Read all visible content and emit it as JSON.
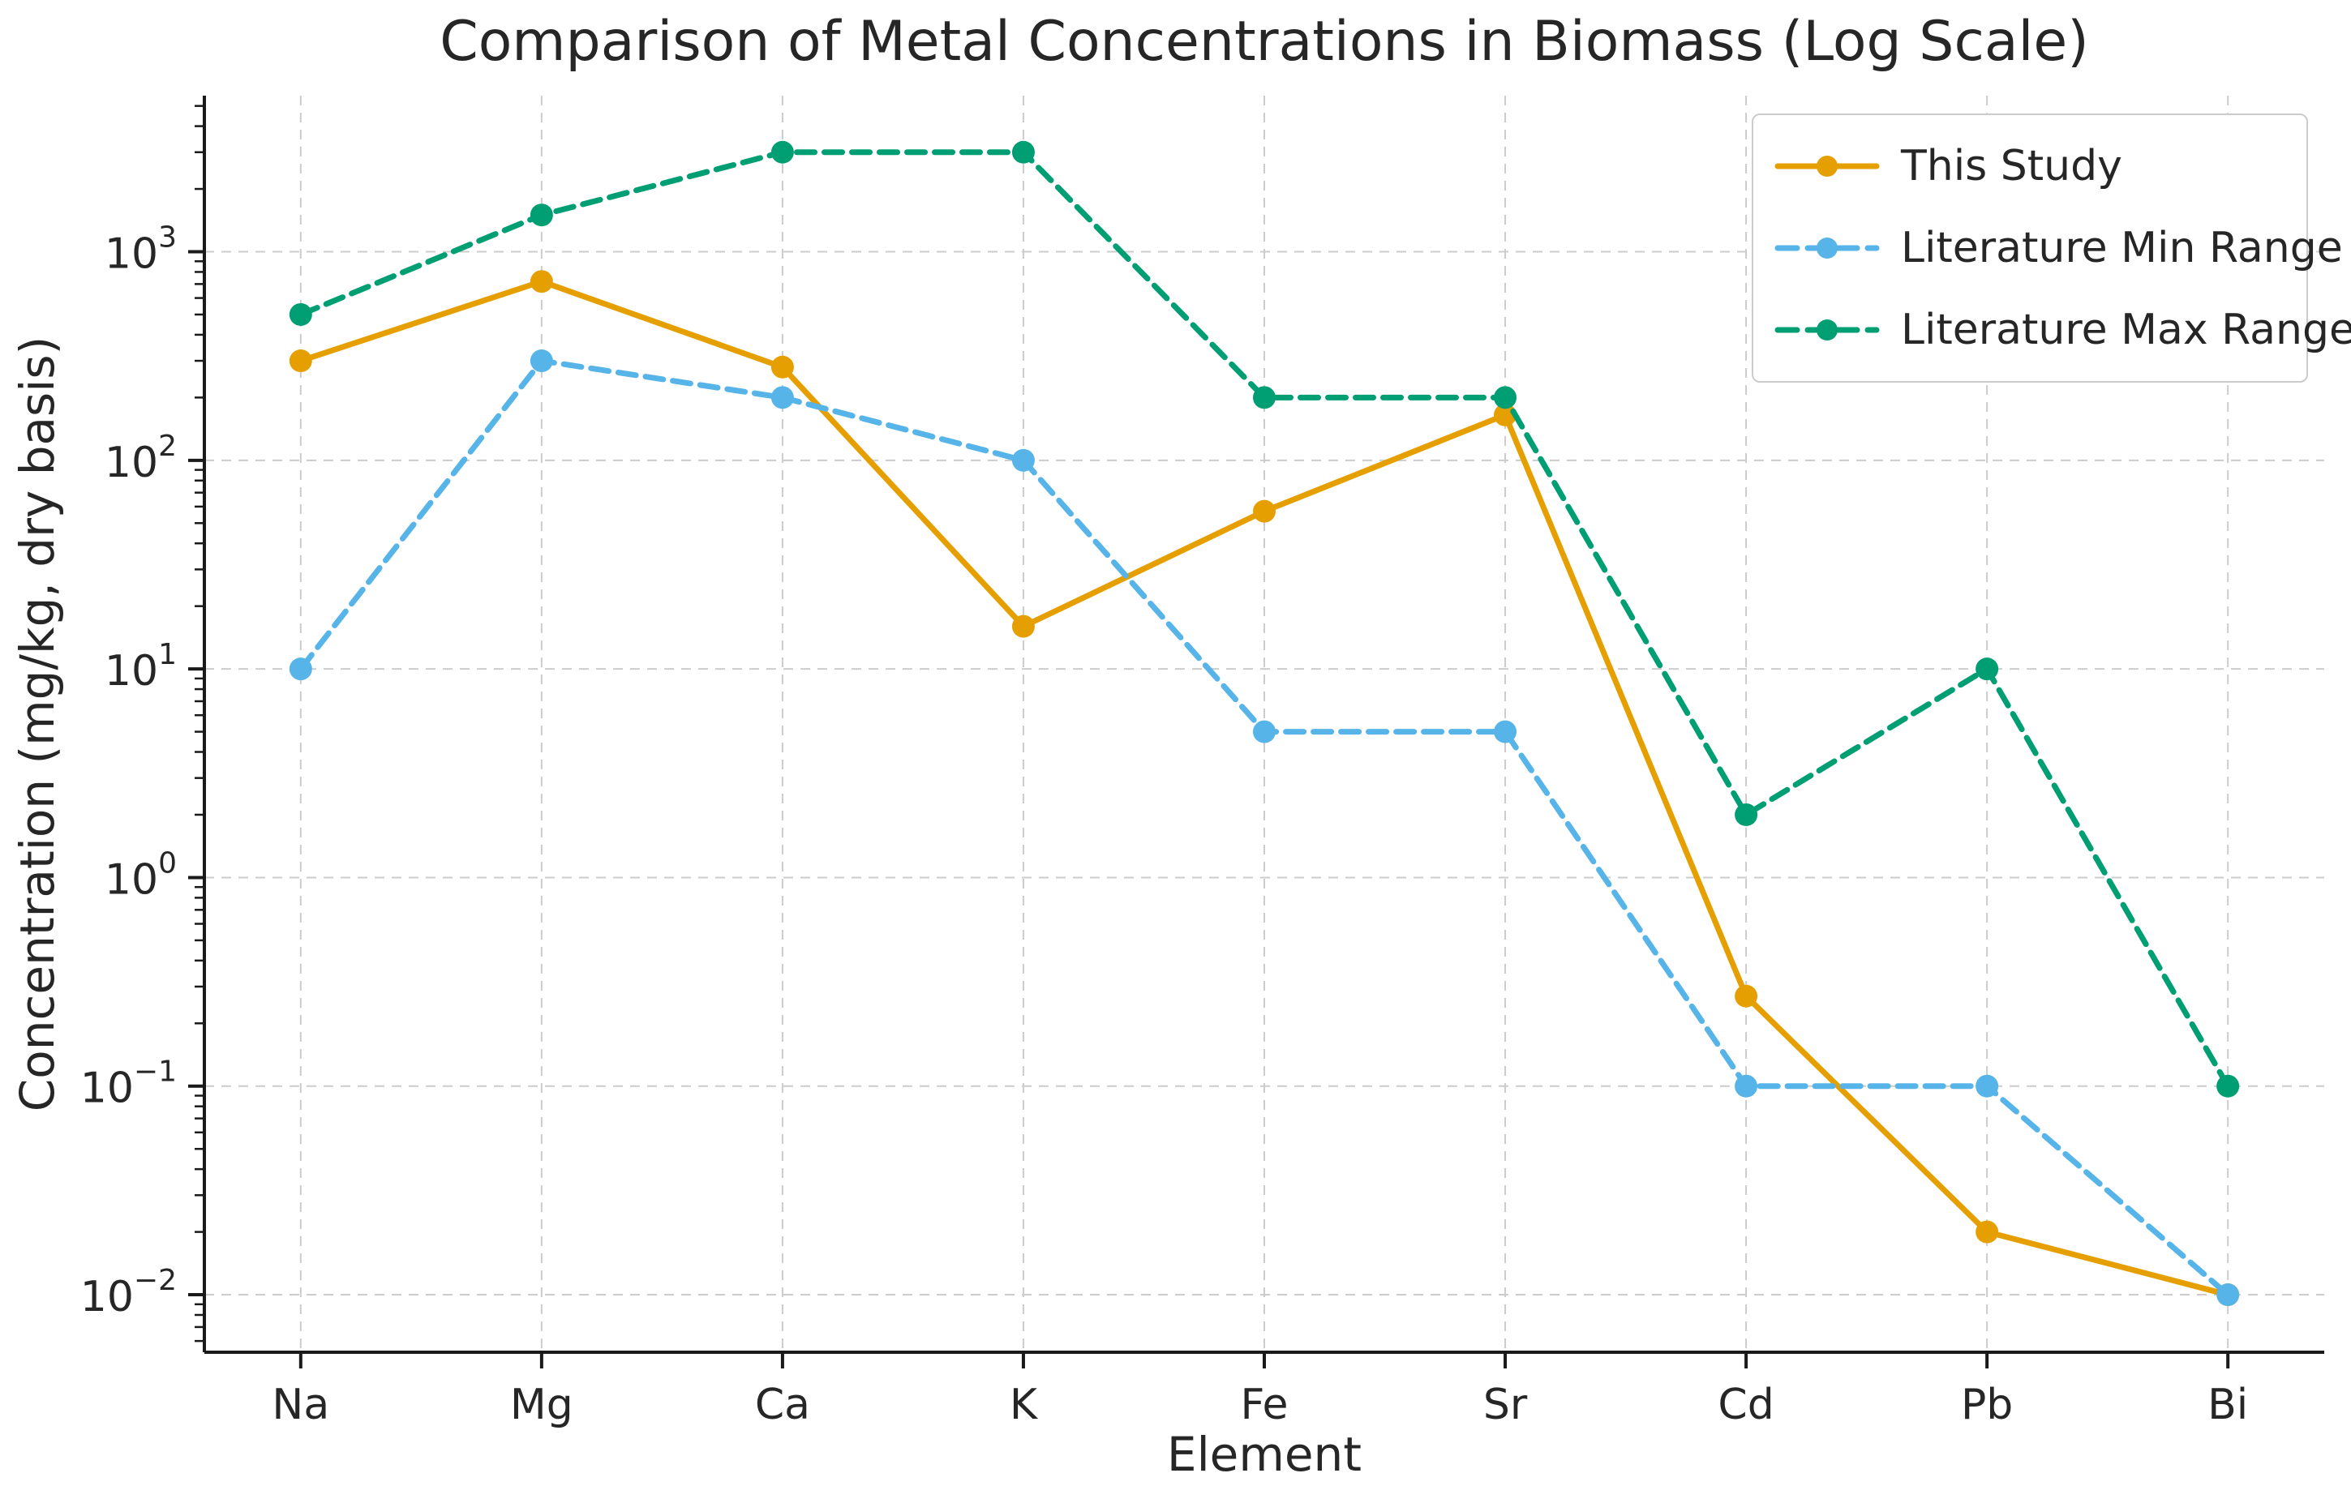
{
  "chart_data": {
    "type": "line",
    "title": "Comparison of Metal Concentrations in Biomass (Log Scale)",
    "xlabel": "Element",
    "ylabel": "Concentration (mg/kg, dry basis)",
    "categories": [
      "Na",
      "Mg",
      "Ca",
      "K",
      "Fe",
      "Sr",
      "Cd",
      "Pb",
      "Bi"
    ],
    "series": [
      {
        "name": "This Study",
        "color": "#E69F00",
        "linestyle": "solid",
        "marker": "circle",
        "values": [
          300,
          720,
          280,
          16,
          57,
          165,
          0.27,
          0.02,
          0.01
        ]
      },
      {
        "name": "Literature Min Range",
        "color": "#56B4E9",
        "linestyle": "dashed",
        "marker": "circle",
        "values": [
          10,
          300,
          200,
          100,
          5,
          5,
          0.1,
          0.1,
          0.01
        ]
      },
      {
        "name": "Literature Max Range",
        "color": "#009E73",
        "linestyle": "dashed",
        "marker": "circle",
        "values": [
          500,
          1500,
          3000,
          3000,
          200,
          200,
          2,
          10,
          0.1
        ]
      }
    ],
    "y_axis": {
      "scale": "log",
      "tick_exponents": [
        3,
        2,
        1,
        0,
        -1,
        -2
      ],
      "ylim": [
        0.0053,
        5600
      ]
    },
    "grid": true,
    "grid_color": "#cccccc",
    "legend_position": "upper right",
    "axis_color": "#1a1a1a"
  }
}
